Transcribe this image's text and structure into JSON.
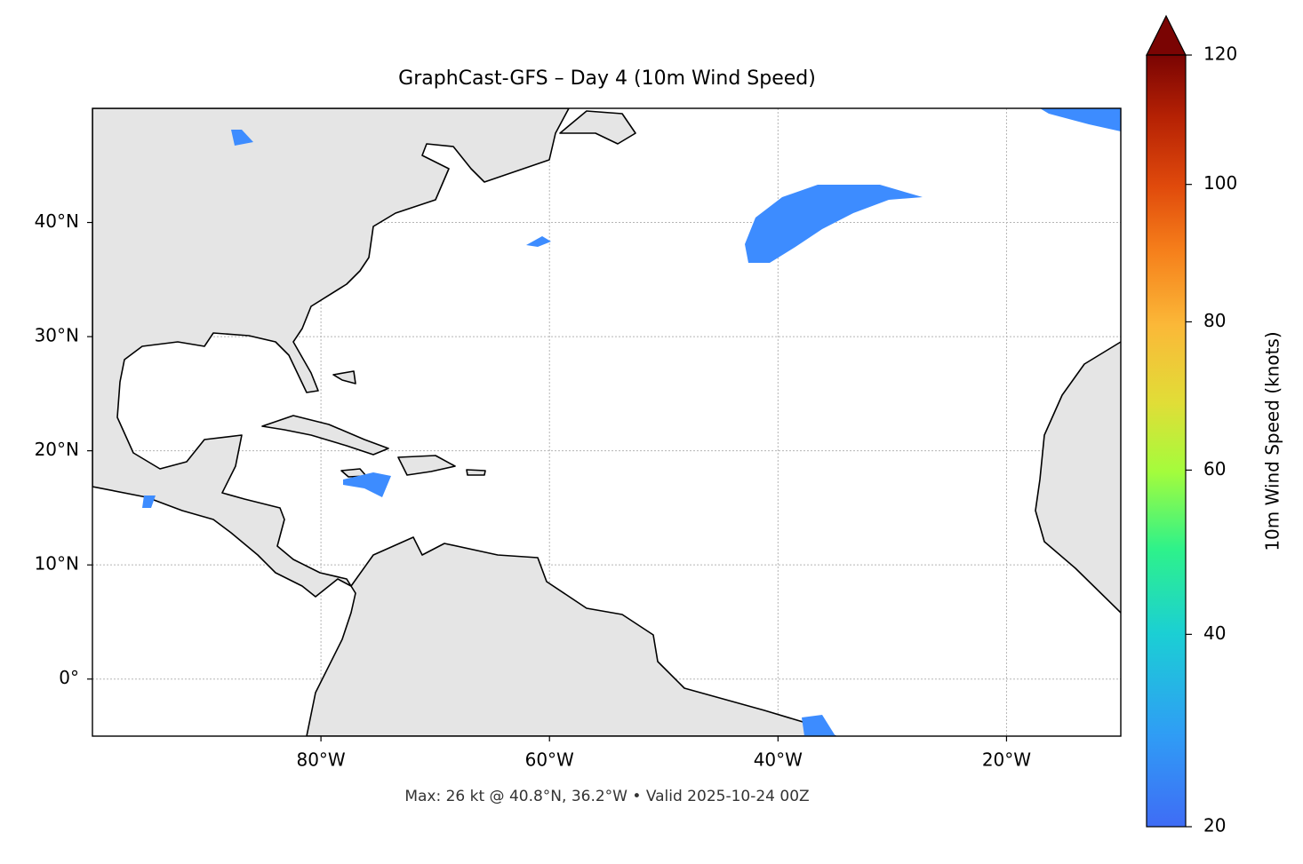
{
  "map": {
    "title": "GraphCast-GFS – Day 4 (10m Wind Speed)",
    "footer": "Max: 26 kt @ 40.8°N, 36.2°W • Valid 2025-10-24 00Z",
    "xlim": [
      -100,
      -10
    ],
    "ylim": [
      -5,
      50
    ],
    "xticks": [
      {
        "value": -80,
        "label": "80°W"
      },
      {
        "value": -60,
        "label": "60°W"
      },
      {
        "value": -40,
        "label": "40°W"
      },
      {
        "value": -20,
        "label": "20°W"
      }
    ],
    "yticks": [
      {
        "value": 0,
        "label": "0°"
      },
      {
        "value": 10,
        "label": "10°N"
      },
      {
        "value": 20,
        "label": "20°N"
      },
      {
        "value": 30,
        "label": "30°N"
      },
      {
        "value": 40,
        "label": "40°N"
      }
    ],
    "grid": true,
    "colorbar": {
      "label": "10m Wind Speed (knots)",
      "lim": [
        20,
        120
      ],
      "ticks": [
        20,
        40,
        60,
        80,
        100,
        120
      ],
      "norm": "power",
      "gamma": 0.7,
      "extend": "max"
    }
  }
}
